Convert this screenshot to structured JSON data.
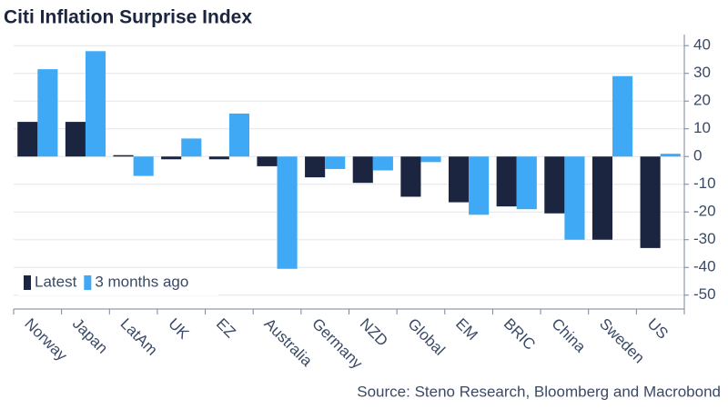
{
  "chart_data": {
    "type": "bar",
    "title": "Citi Inflation Surprise Index",
    "source": "Source: Steno Research, Bloomberg and Macrobond",
    "categories": [
      "Norway",
      "Japan",
      "LatAm",
      "UK",
      "EZ",
      "Australia",
      "Germany",
      "NZD",
      "Global",
      "EM",
      "BRIC",
      "China",
      "Sweden",
      "US"
    ],
    "series": [
      {
        "name": "Latest",
        "color": "#1c2540",
        "values": [
          12.5,
          12.5,
          0.5,
          -1,
          -1,
          -3.5,
          -7.5,
          -9.5,
          -14.5,
          -16.5,
          -18,
          -20.5,
          -30,
          -33
        ]
      },
      {
        "name": "3 months ago",
        "color": "#3fa9f5",
        "values": [
          31.5,
          38,
          -7,
          6.5,
          15.5,
          -40.5,
          -4.5,
          -5,
          -2,
          -21,
          -19,
          -30,
          29,
          1
        ]
      }
    ],
    "ylim": [
      -55,
      44
    ],
    "yticks": [
      40,
      30,
      20,
      10,
      0,
      -10,
      -20,
      -30,
      -40,
      -50
    ],
    "grid": true,
    "legend": "lower-left"
  }
}
